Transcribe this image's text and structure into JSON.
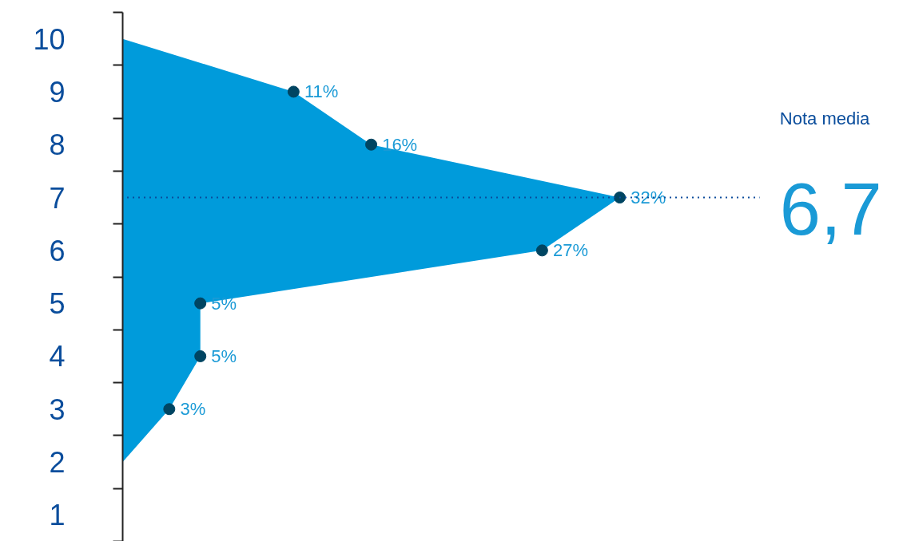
{
  "chart_data": {
    "type": "area",
    "orientation": "horizontal",
    "categories": [
      "10",
      "9",
      "8",
      "7",
      "6",
      "5",
      "4",
      "3",
      "2",
      "1"
    ],
    "series": [
      {
        "color": "#009bdb",
        "values": [
          0,
          11,
          16,
          32,
          27,
          5,
          5,
          3,
          0,
          null
        ],
        "value_labels": [
          null,
          "11%",
          "16%",
          "32%",
          "27%",
          "5%",
          "5%",
          "3%",
          null,
          null
        ]
      }
    ],
    "marker": "circle",
    "ref_lines": [
      {
        "axis": "y",
        "value": "7",
        "label": "6,7",
        "line_style": "dotted",
        "color": "#0a4d9c"
      }
    ],
    "annotations": [
      "Nota media"
    ],
    "grid": false
  }
}
